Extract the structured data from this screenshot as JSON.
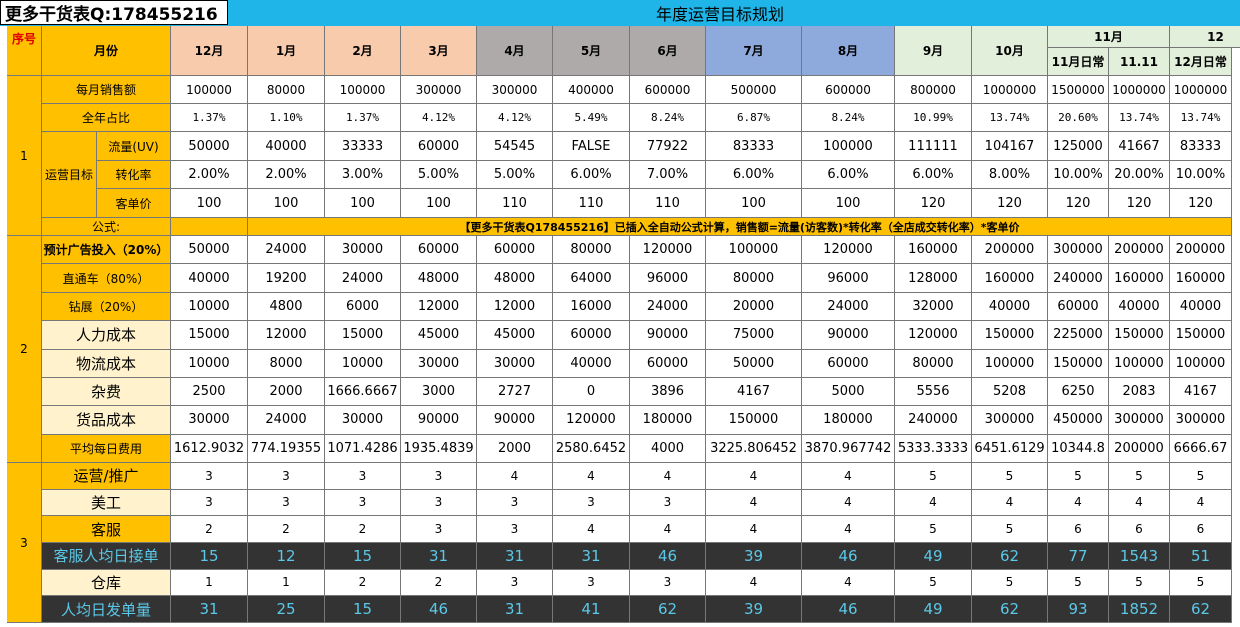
{
  "header": {
    "badge": "更多干货表Q:178455216",
    "title": "年度运营目标规划"
  },
  "table": {
    "head": {
      "seq": "序号",
      "month": "月份",
      "months": [
        "12月",
        "1月",
        "2月",
        "3月",
        "4月",
        "5月",
        "6月",
        "7月",
        "8月",
        "9月",
        "10月"
      ],
      "nov": "11月",
      "nov_sub": [
        "11月日常",
        "11.11"
      ],
      "dec": "12",
      "dec_sub": "12月日常"
    },
    "groups": [
      {
        "seq": "1",
        "rows": [
          {
            "label": "每月销售额",
            "cells": [
              "100000",
              "80000",
              "100000",
              "300000",
              "300000",
              "400000",
              "600000",
              "500000",
              "600000",
              "800000",
              "1000000",
              "1500000",
              "1000000",
              "1000000"
            ]
          },
          {
            "label": "全年占比",
            "cells": [
              "1.37%",
              "1.10%",
              "1.37%",
              "4.12%",
              "4.12%",
              "5.49%",
              "8.24%",
              "6.87%",
              "8.24%",
              "10.99%",
              "13.74%",
              "20.60%",
              "13.74%",
              "13.74%"
            ]
          }
        ],
        "target": {
          "label": "运营目标",
          "rows": [
            {
              "label": "流量(UV)",
              "cells": [
                "50000",
                "40000",
                "33333",
                "60000",
                "54545",
                "FALSE",
                "77922",
                "83333",
                "100000",
                "111111",
                "104167",
                "125000",
                "41667",
                "83333"
              ]
            },
            {
              "label": "转化率",
              "cells": [
                "2.00%",
                "2.00%",
                "3.00%",
                "5.00%",
                "5.00%",
                "6.00%",
                "7.00%",
                "6.00%",
                "6.00%",
                "6.00%",
                "8.00%",
                "10.00%",
                "20.00%",
                "10.00%"
              ]
            },
            {
              "label": "客单价",
              "cells": [
                "100",
                "100",
                "100",
                "100",
                "110",
                "110",
                "110",
                "100",
                "100",
                "120",
                "120",
                "120",
                "120",
                "120"
              ]
            }
          ]
        },
        "formula": {
          "label": "公式:",
          "text": "【更多干货表Q178455216】已插入全自动公式计算，销售额=流量(访客数)*转化率（全店成交转化率）*客单价"
        }
      },
      {
        "seq": "2",
        "rows": [
          {
            "label": "预计广告投入（20%）",
            "cells": [
              "50000",
              "24000",
              "30000",
              "60000",
              "60000",
              "80000",
              "120000",
              "100000",
              "120000",
              "160000",
              "200000",
              "300000",
              "200000",
              "200000"
            ]
          },
          {
            "label": "直通车（80%）",
            "cells": [
              "40000",
              "19200",
              "24000",
              "48000",
              "48000",
              "64000",
              "96000",
              "80000",
              "96000",
              "128000",
              "160000",
              "240000",
              "160000",
              "160000"
            ]
          },
          {
            "label": "钻展（20%）",
            "cells": [
              "10000",
              "4800",
              "6000",
              "12000",
              "12000",
              "16000",
              "24000",
              "20000",
              "24000",
              "32000",
              "40000",
              "60000",
              "40000",
              "40000"
            ]
          },
          {
            "label": "人力成本",
            "cells": [
              "15000",
              "12000",
              "15000",
              "45000",
              "45000",
              "60000",
              "90000",
              "75000",
              "90000",
              "120000",
              "150000",
              "225000",
              "150000",
              "150000"
            ]
          },
          {
            "label": "物流成本",
            "cells": [
              "10000",
              "8000",
              "10000",
              "30000",
              "30000",
              "40000",
              "60000",
              "50000",
              "60000",
              "80000",
              "100000",
              "150000",
              "100000",
              "100000"
            ]
          },
          {
            "label": "杂费",
            "cells": [
              "2500",
              "2000",
              "1666.6667",
              "3000",
              "2727",
              "0",
              "3896",
              "4167",
              "5000",
              "5556",
              "5208",
              "6250",
              "2083",
              "4167"
            ]
          },
          {
            "label": "货品成本",
            "cells": [
              "30000",
              "24000",
              "30000",
              "90000",
              "90000",
              "120000",
              "180000",
              "150000",
              "180000",
              "240000",
              "300000",
              "450000",
              "300000",
              "300000"
            ]
          },
          {
            "label": "平均每日费用",
            "cells": [
              "1612.9032",
              "774.19355",
              "1071.4286",
              "1935.4839",
              "2000",
              "2580.6452",
              "4000",
              "3225.806452",
              "3870.967742",
              "5333.3333",
              "6451.6129",
              "10344.8",
              "200000",
              "6666.67"
            ]
          }
        ]
      },
      {
        "seq": "3",
        "rows": [
          {
            "label": "运营/推广",
            "cells": [
              "3",
              "3",
              "3",
              "3",
              "4",
              "4",
              "4",
              "4",
              "4",
              "5",
              "5",
              "5",
              "5",
              "5"
            ]
          },
          {
            "label": "美工",
            "cells": [
              "3",
              "3",
              "3",
              "3",
              "3",
              "3",
              "3",
              "4",
              "4",
              "4",
              "4",
              "4",
              "4",
              "4"
            ]
          },
          {
            "label": "客服",
            "cells": [
              "2",
              "2",
              "2",
              "3",
              "3",
              "4",
              "4",
              "4",
              "4",
              "5",
              "5",
              "6",
              "6",
              "6"
            ]
          },
          {
            "label": "客服人均日接单",
            "cells": [
              "15",
              "12",
              "15",
              "31",
              "31",
              "31",
              "46",
              "39",
              "46",
              "49",
              "62",
              "77",
              "1543",
              "51"
            ]
          },
          {
            "label": "仓库",
            "cells": [
              "1",
              "1",
              "2",
              "2",
              "3",
              "3",
              "3",
              "4",
              "4",
              "5",
              "5",
              "5",
              "5",
              "5"
            ]
          },
          {
            "label": "人均日发单量",
            "cells": [
              "31",
              "25",
              "15",
              "46",
              "31",
              "41",
              "62",
              "39",
              "46",
              "49",
              "62",
              "93",
              "1852",
              "62"
            ]
          }
        ]
      }
    ]
  }
}
